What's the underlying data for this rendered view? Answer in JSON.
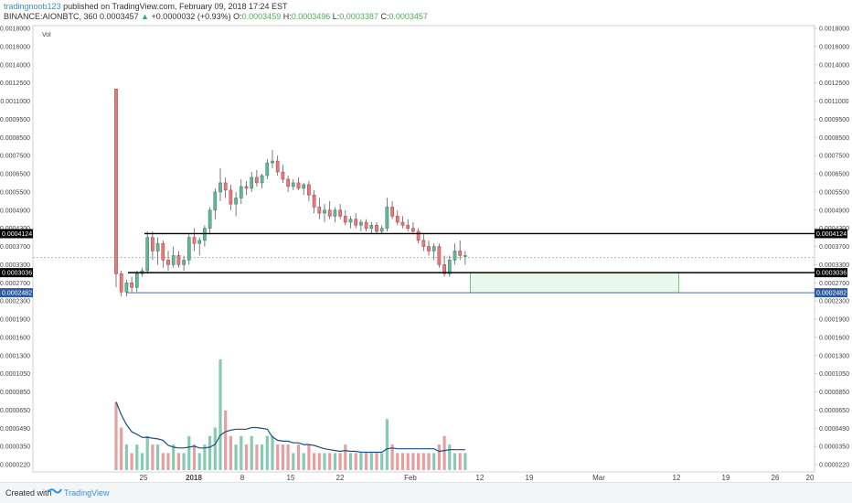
{
  "header": {
    "user": "tradingnoob123",
    "published": " published on TradingView.com, February 09, 2018 17:24 EST",
    "symbol": "BINANCE:AIONBTC, 360",
    "price": "0.0003457",
    "change_arrow": "▲",
    "change": "+0.0000032 (+0.93%)",
    "o_label": "O:",
    "o_value": "0.0003459",
    "h_label": "H:",
    "h_value": "0.0003496",
    "l_label": "L:",
    "l_value": "0.0003387",
    "c_label": "C:",
    "c_value": "0.0003457"
  },
  "footer": {
    "created": "Created with",
    "brand": "TradingView"
  },
  "colors": {
    "up": "#5fb89b",
    "down": "#e27c7c",
    "level": "#000000",
    "support": "#2c5aa0",
    "zone_fill": "#e8f8ea",
    "zone_stroke": "#5cb85c",
    "ma": "#1a4f80",
    "last_price": "#e57373"
  },
  "chart_data": {
    "type": "candlestick",
    "title": "",
    "volume_label": "Vol",
    "y_ticks_left": [
      "0.0018000",
      "0.0016000",
      "0.0014000",
      "0.0012500",
      "0.0011000",
      "0.0009500",
      "0.0008500",
      "0.0007500",
      "0.0006500",
      "0.0005500",
      "0.0004900",
      "0.0004300",
      "0.0003700",
      "0.0003300",
      "0.0002700",
      "0.0002300",
      "0.0001900",
      "0.0001600",
      "0.0001300",
      "0.0001050",
      "0.0000850",
      "0.0000650",
      "0.0000490",
      "0.0000350",
      "0.0000220"
    ],
    "y_ticks_right": [
      "0.0018000",
      "0.0016000",
      "0.0014000",
      "0.0012500",
      "0.0011000",
      "0.0009500",
      "0.0008500",
      "0.0007500",
      "0.0006500",
      "0.0005500",
      "0.0004900",
      "0.0004300",
      "0.0003700",
      "0.0003300",
      "0.0002700",
      "0.0002300",
      "0.0001900",
      "0.0001600",
      "0.0001300",
      "0.0001050",
      "0.0000850",
      "0.0000650",
      "0.0000490",
      "0.0000350",
      "0.0000220"
    ],
    "x_ticks": [
      "25",
      "2018",
      "8",
      "15",
      "22",
      "Feb",
      "12",
      "19",
      "Mar",
      "12",
      "19",
      "26",
      "20"
    ],
    "levels": [
      {
        "name": "resistance",
        "value": "0.0004124",
        "price": 0.0004124
      },
      {
        "name": "support",
        "value": "0.0003036",
        "price": 0.0003036
      },
      {
        "name": "low",
        "value": "0.0002482",
        "price": 0.0002482
      }
    ],
    "last_price": 0.0003457,
    "zone": {
      "from_price": 0.0003036,
      "to_price": 0.0002482,
      "from_bar": 68,
      "to_bar": 108
    },
    "candles": [
      [
        0.0012,
        0.0012,
        0.00026,
        0.0003
      ],
      [
        0.0003,
        0.00031,
        0.00024,
        0.00025
      ],
      [
        0.00025,
        0.00028,
        0.00024,
        0.00027
      ],
      [
        0.00027,
        0.00029,
        0.00025,
        0.00026
      ],
      [
        0.00026,
        0.00031,
        0.00025,
        0.0003
      ],
      [
        0.0003,
        0.00032,
        0.00029,
        0.00031
      ],
      [
        0.00031,
        0.00042,
        0.0003,
        0.0004
      ],
      [
        0.0004,
        0.00042,
        0.00034,
        0.00036
      ],
      [
        0.00036,
        0.0004,
        0.00033,
        0.00038
      ],
      [
        0.00038,
        0.00039,
        0.00032,
        0.00034
      ],
      [
        0.00034,
        0.00036,
        0.00031,
        0.00033
      ],
      [
        0.00033,
        0.00037,
        0.00032,
        0.00035
      ],
      [
        0.00035,
        0.00036,
        0.00032,
        0.00033
      ],
      [
        0.00033,
        0.00035,
        0.00031,
        0.00034
      ],
      [
        0.00034,
        0.00041,
        0.00033,
        0.0004
      ],
      [
        0.0004,
        0.00043,
        0.00036,
        0.00038
      ],
      [
        0.00038,
        0.0004,
        0.00035,
        0.00039
      ],
      [
        0.00039,
        0.00044,
        0.00037,
        0.00043
      ],
      [
        0.00043,
        0.0005,
        0.00041,
        0.00049
      ],
      [
        0.00049,
        0.00057,
        0.00046,
        0.00055
      ],
      [
        0.00055,
        0.00068,
        0.00052,
        0.0006
      ],
      [
        0.0006,
        0.00063,
        0.00053,
        0.00056
      ],
      [
        0.00056,
        0.00059,
        0.00049,
        0.00051
      ],
      [
        0.00051,
        0.00055,
        0.00047,
        0.00053
      ],
      [
        0.00053,
        0.00062,
        0.00051,
        0.00058
      ],
      [
        0.00058,
        0.00061,
        0.00054,
        0.00057
      ],
      [
        0.00057,
        0.00066,
        0.00055,
        0.00063
      ],
      [
        0.00063,
        0.00067,
        0.00058,
        0.0006
      ],
      [
        0.0006,
        0.00065,
        0.00057,
        0.00064
      ],
      [
        0.00064,
        0.00073,
        0.00062,
        0.00071
      ],
      [
        0.00071,
        0.00078,
        0.00068,
        0.00072
      ],
      [
        0.00072,
        0.00075,
        0.00064,
        0.00066
      ],
      [
        0.00066,
        0.0007,
        0.0006,
        0.00062
      ],
      [
        0.00062,
        0.00064,
        0.00055,
        0.00058
      ],
      [
        0.00058,
        0.00062,
        0.00056,
        0.0006
      ],
      [
        0.0006,
        0.00063,
        0.00056,
        0.00057
      ],
      [
        0.00057,
        0.0006,
        0.00054,
        0.00059
      ],
      [
        0.00059,
        0.00061,
        0.00052,
        0.00054
      ],
      [
        0.00054,
        0.00056,
        0.00048,
        0.0005
      ],
      [
        0.0005,
        0.00053,
        0.00046,
        0.00048
      ],
      [
        0.00048,
        0.00051,
        0.00045,
        0.00049
      ],
      [
        0.00049,
        0.00052,
        0.00046,
        0.00047
      ],
      [
        0.00047,
        0.0005,
        0.00045,
        0.00049
      ],
      [
        0.00049,
        0.00051,
        0.00046,
        0.00047
      ],
      [
        0.00047,
        0.00049,
        0.00044,
        0.00045
      ],
      [
        0.00045,
        0.00047,
        0.00043,
        0.00046
      ],
      [
        0.00046,
        0.00048,
        0.00043,
        0.00044
      ],
      [
        0.00044,
        0.00046,
        0.00042,
        0.00045
      ],
      [
        0.00045,
        0.00046,
        0.00042,
        0.00043
      ],
      [
        0.00043,
        0.00045,
        0.00041,
        0.00044
      ],
      [
        0.00044,
        0.00045,
        0.00041,
        0.00042
      ],
      [
        0.00042,
        0.00044,
        0.00041,
        0.00043
      ],
      [
        0.00043,
        0.00053,
        0.00042,
        0.0005
      ],
      [
        0.0005,
        0.00052,
        0.00046,
        0.00047
      ],
      [
        0.00047,
        0.00049,
        0.00044,
        0.00045
      ],
      [
        0.00045,
        0.00047,
        0.00043,
        0.00044
      ],
      [
        0.00044,
        0.00046,
        0.00042,
        0.00043
      ],
      [
        0.00043,
        0.00045,
        0.00041,
        0.00042
      ],
      [
        0.00042,
        0.00043,
        0.00038,
        0.00039
      ],
      [
        0.00039,
        0.00041,
        0.00036,
        0.00037
      ],
      [
        0.00037,
        0.00039,
        0.00035,
        0.00036
      ],
      [
        0.00036,
        0.00038,
        0.00034,
        0.00037
      ],
      [
        0.00037,
        0.00038,
        0.00032,
        0.00033
      ],
      [
        0.00033,
        0.00035,
        0.00029,
        0.0003
      ],
      [
        0.0003,
        0.00035,
        0.00029,
        0.00034
      ],
      [
        0.00034,
        0.00038,
        0.00033,
        0.00036
      ],
      [
        0.00036,
        0.00039,
        0.00034,
        0.00035
      ],
      [
        0.00035,
        0.00036,
        0.00033,
        0.00035
      ]
    ],
    "volume": [
      8e-05,
      5e-05,
      3e-05,
      2e-05,
      3e-05,
      2e-05,
      4e-05,
      3e-05,
      3e-05,
      2e-05,
      2e-05,
      3e-05,
      2e-05,
      2e-05,
      4e-05,
      3e-05,
      2e-05,
      3e-05,
      4e-05,
      5e-05,
      0.00013,
      7e-05,
      4e-05,
      3e-05,
      4e-05,
      3e-05,
      4e-05,
      3e-05,
      3e-05,
      4e-05,
      4e-05,
      3e-05,
      3e-05,
      3e-05,
      2e-05,
      3e-05,
      2e-05,
      3e-05,
      2e-05,
      2e-05,
      2e-05,
      2e-05,
      2e-05,
      2e-05,
      3e-05,
      2e-05,
      2e-05,
      2e-05,
      2e-05,
      2e-05,
      2e-05,
      2e-05,
      6e-05,
      3e-05,
      2e-05,
      2e-05,
      2e-05,
      2e-05,
      2e-05,
      2e-05,
      2e-05,
      2e-05,
      3e-05,
      4e-05,
      3e-05,
      2e-05,
      2e-05,
      2e-05
    ]
  }
}
